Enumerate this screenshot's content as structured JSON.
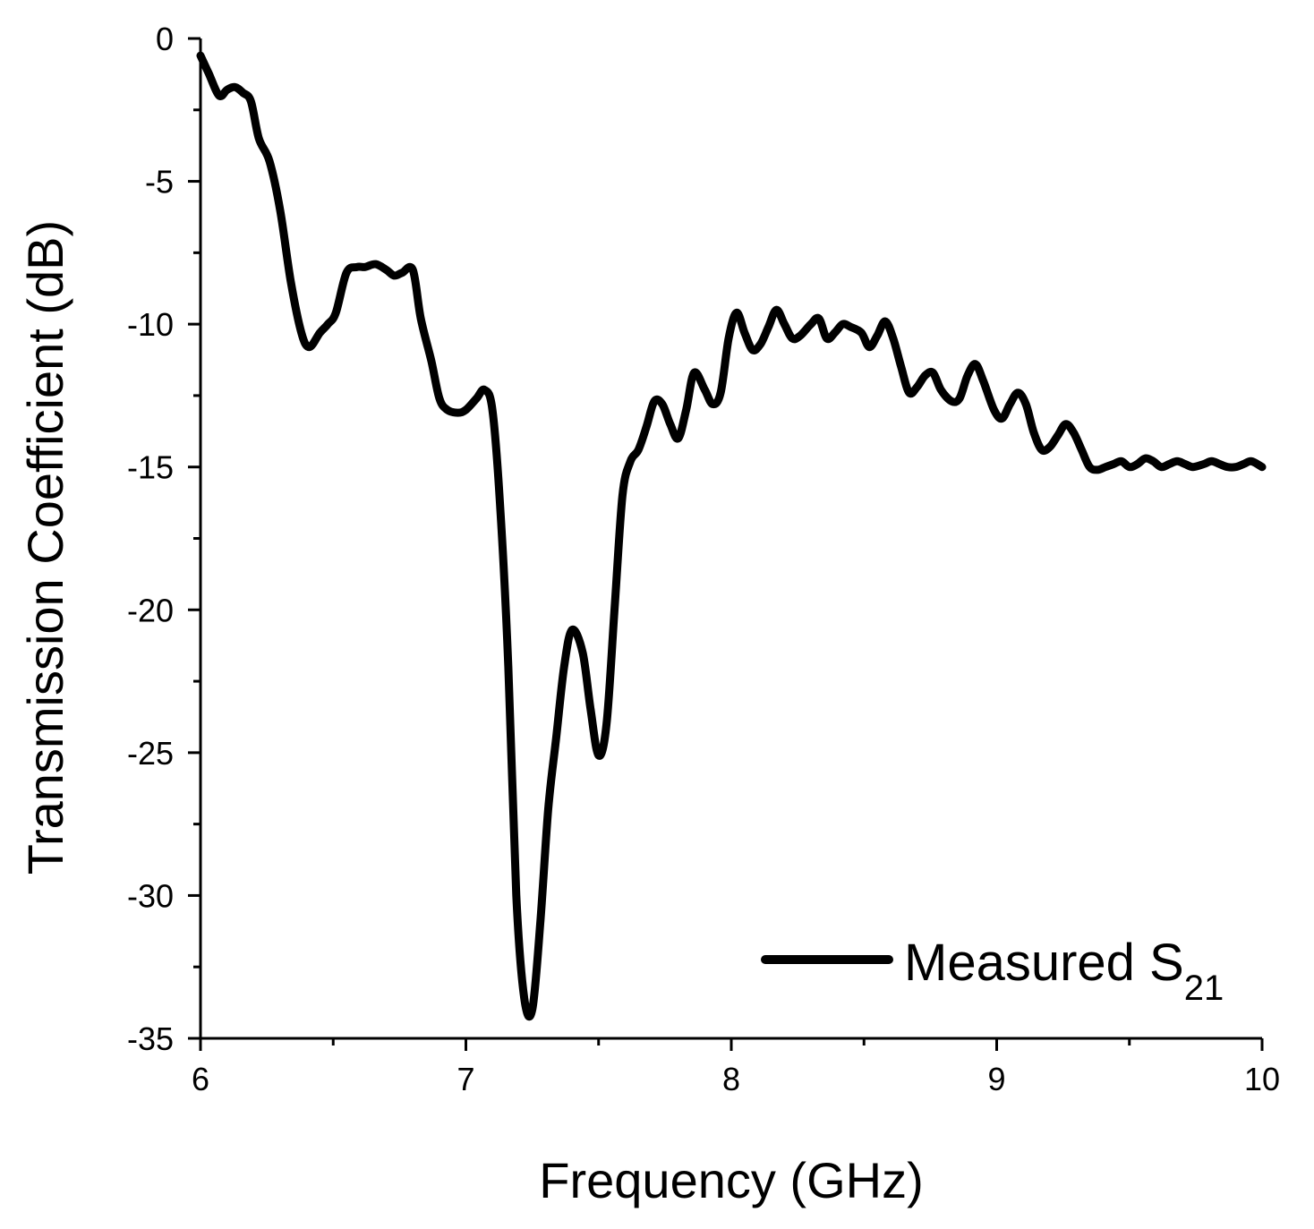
{
  "chart_data": {
    "type": "line",
    "title": "",
    "xlabel": "Frequency (GHz)",
    "ylabel": "Transmission Coefficient (dB)",
    "xlim": [
      6,
      10
    ],
    "ylim": [
      -35,
      0
    ],
    "xticks": [
      6,
      7,
      8,
      9,
      10
    ],
    "xtick_labels": [
      "6",
      "7",
      "8",
      "9",
      "10"
    ],
    "yticks": [
      0,
      -5,
      -10,
      -15,
      -20,
      -25,
      -30,
      -35
    ],
    "ytick_labels": [
      "0",
      "-5",
      "-10",
      "-15",
      "-20",
      "-25",
      "-30",
      "-35"
    ],
    "grid": false,
    "legend_position": "bottom-right",
    "series": [
      {
        "name": "Measured S21",
        "legend_label": "Measured S",
        "legend_subscript": "21",
        "color": "#000000",
        "x": [
          6.0,
          6.03,
          6.07,
          6.1,
          6.13,
          6.16,
          6.19,
          6.22,
          6.26,
          6.3,
          6.34,
          6.38,
          6.41,
          6.45,
          6.48,
          6.51,
          6.55,
          6.59,
          6.62,
          6.66,
          6.7,
          6.73,
          6.76,
          6.8,
          6.83,
          6.87,
          6.9,
          6.93,
          6.97,
          7.0,
          7.04,
          7.07,
          7.1,
          7.13,
          7.16,
          7.19,
          7.22,
          7.25,
          7.28,
          7.31,
          7.34,
          7.37,
          7.4,
          7.44,
          7.47,
          7.5,
          7.53,
          7.56,
          7.59,
          7.62,
          7.65,
          7.68,
          7.71,
          7.74,
          7.77,
          7.8,
          7.83,
          7.86,
          7.9,
          7.93,
          7.96,
          7.99,
          8.02,
          8.05,
          8.08,
          8.11,
          8.14,
          8.17,
          8.2,
          8.23,
          8.26,
          8.3,
          8.33,
          8.36,
          8.39,
          8.42,
          8.45,
          8.49,
          8.52,
          8.55,
          8.58,
          8.61,
          8.64,
          8.67,
          8.7,
          8.73,
          8.76,
          8.79,
          8.83,
          8.86,
          8.89,
          8.92,
          8.95,
          8.99,
          9.02,
          9.05,
          9.08,
          9.11,
          9.14,
          9.17,
          9.2,
          9.23,
          9.26,
          9.29,
          9.32,
          9.35,
          9.38,
          9.41,
          9.44,
          9.47,
          9.5,
          9.53,
          9.56,
          9.59,
          9.62,
          9.65,
          9.68,
          9.71,
          9.74,
          9.78,
          9.81,
          9.84,
          9.87,
          9.9,
          9.93,
          9.96,
          10.0
        ],
        "y": [
          -0.6,
          -1.2,
          -2.0,
          -1.8,
          -1.7,
          -1.9,
          -2.2,
          -3.5,
          -4.3,
          -6.0,
          -8.5,
          -10.3,
          -10.8,
          -10.3,
          -10.0,
          -9.6,
          -8.2,
          -8.0,
          -8.0,
          -7.9,
          -8.1,
          -8.3,
          -8.2,
          -8.1,
          -9.8,
          -11.3,
          -12.6,
          -13.0,
          -13.1,
          -13.0,
          -12.6,
          -12.3,
          -13.0,
          -16.5,
          -22.0,
          -30.0,
          -33.6,
          -34.0,
          -31.0,
          -27.0,
          -24.5,
          -22.0,
          -20.7,
          -21.5,
          -23.5,
          -25.1,
          -24.0,
          -20.0,
          -16.0,
          -14.8,
          -14.4,
          -13.6,
          -12.7,
          -12.8,
          -13.5,
          -14.0,
          -13.0,
          -11.7,
          -12.3,
          -12.8,
          -12.4,
          -10.5,
          -9.6,
          -10.3,
          -10.9,
          -10.7,
          -10.1,
          -9.5,
          -10.0,
          -10.5,
          -10.4,
          -10.0,
          -9.8,
          -10.5,
          -10.3,
          -10.0,
          -10.1,
          -10.3,
          -10.8,
          -10.4,
          -9.9,
          -10.5,
          -11.5,
          -12.4,
          -12.2,
          -11.8,
          -11.7,
          -12.3,
          -12.7,
          -12.6,
          -11.8,
          -11.4,
          -12.0,
          -13.0,
          -13.3,
          -12.8,
          -12.4,
          -12.8,
          -13.8,
          -14.4,
          -14.3,
          -13.9,
          -13.5,
          -13.8,
          -14.4,
          -15.0,
          -15.1,
          -15.0,
          -14.9,
          -14.8,
          -15.0,
          -14.9,
          -14.7,
          -14.8,
          -15.0,
          -14.9,
          -14.8,
          -14.9,
          -15.0,
          -14.9,
          -14.8,
          -14.9,
          -15.0,
          -15.0,
          -14.9,
          -14.8,
          -15.0
        ]
      }
    ]
  }
}
